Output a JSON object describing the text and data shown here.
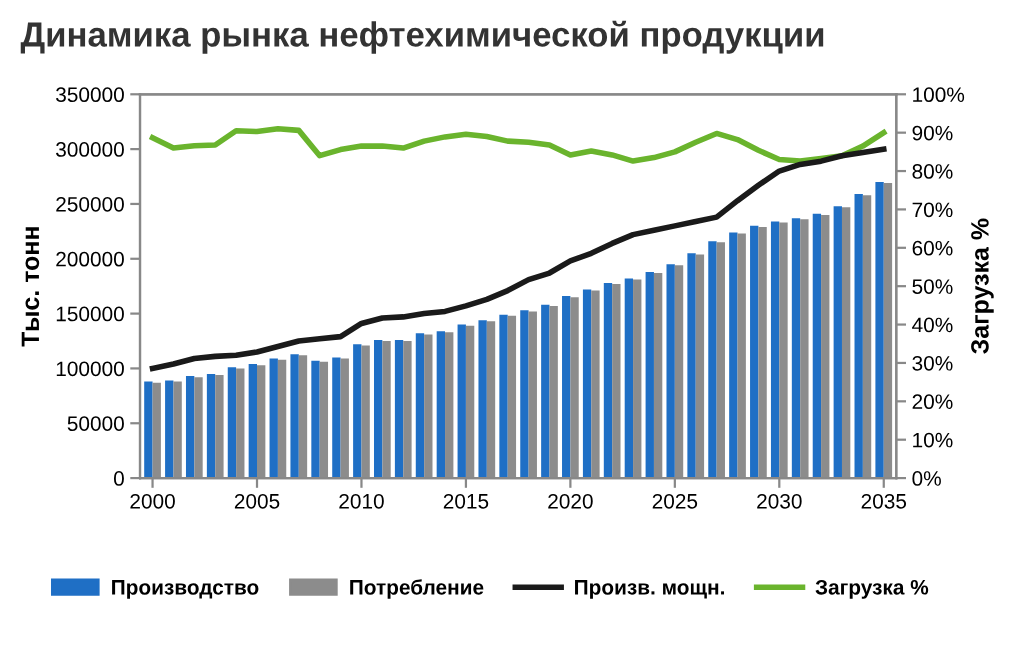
{
  "chart_data": {
    "type": "bar",
    "title": "Динамика рынка нефтехимической продукции",
    "ylabel": "Тыс. тонн",
    "y2label": "Загрузка %",
    "categories": [
      "2000",
      null,
      null,
      null,
      null,
      "2005",
      null,
      null,
      null,
      null,
      "2010",
      null,
      null,
      null,
      null,
      "2015",
      null,
      null,
      null,
      null,
      "2020",
      null,
      null,
      null,
      null,
      "2025",
      null,
      null,
      null,
      null,
      "2030",
      null,
      null,
      null,
      null,
      "2035"
    ],
    "series": [
      {
        "name": "Производство",
        "color": "#1f6fc5",
        "values": [
          88000,
          89000,
          93000,
          95000,
          101000,
          104000,
          109000,
          113000,
          107000,
          110000,
          122000,
          126000,
          126000,
          132000,
          134000,
          140000,
          144000,
          149000,
          153000,
          158000,
          166000,
          172000,
          178000,
          182000,
          188000,
          195000,
          205000,
          216000,
          224000,
          230000,
          234000,
          237000,
          241000,
          248000,
          259000,
          270000
        ]
      },
      {
        "name": "Потребление",
        "color": "#8c8c8c",
        "values": [
          87000,
          88000,
          92000,
          94000,
          100000,
          103000,
          108000,
          112000,
          106000,
          109000,
          121000,
          125000,
          125000,
          131000,
          133000,
          139000,
          143000,
          148000,
          152000,
          157000,
          165000,
          171000,
          177000,
          181000,
          187000,
          194000,
          204000,
          215000,
          223000,
          229000,
          233000,
          236000,
          240000,
          247000,
          258000,
          269000
        ]
      },
      {
        "name": "Произв. мощн.",
        "type": "line",
        "color": "#1a1a1a",
        "values": [
          100000,
          104000,
          109000,
          111000,
          112000,
          115000,
          120000,
          125000,
          127000,
          129000,
          141000,
          146000,
          147000,
          150000,
          152000,
          157000,
          163000,
          171000,
          181000,
          187000,
          198000,
          205000,
          214000,
          222000,
          226000,
          230000,
          234000,
          238000,
          253000,
          267000,
          280000,
          286000,
          289000,
          294000,
          297000,
          300000
        ]
      },
      {
        "name": "Загрузка %",
        "type": "line",
        "axis": "y2",
        "color": "#6ab42d",
        "values": [
          88.7,
          86,
          86.6,
          86.8,
          90.5,
          90.3,
          91,
          90.6,
          84,
          85.6,
          86.5,
          86.5,
          86,
          87.8,
          88.9,
          89.6,
          89,
          87.8,
          87.5,
          86.8,
          84.2,
          85.2,
          84.2,
          82.6,
          83.5,
          85,
          87.5,
          89.8,
          88.2,
          85.4,
          83,
          82.6,
          83.3,
          84,
          86.5,
          90
        ]
      }
    ],
    "ylim": [
      0,
      350000
    ],
    "yticks": [
      0,
      50000,
      100000,
      150000,
      200000,
      250000,
      300000,
      350000
    ],
    "y2lim": [
      0,
      100
    ],
    "y2ticks": [
      {
        "value": 0,
        "label": "0%"
      },
      {
        "value": 10,
        "label": "10%"
      },
      {
        "value": 20,
        "label": "20%"
      },
      {
        "value": 30,
        "label": "30%"
      },
      {
        "value": 40,
        "label": "40%"
      },
      {
        "value": 50,
        "label": "50%"
      },
      {
        "value": 60,
        "label": "60%"
      },
      {
        "value": 70,
        "label": "70%"
      },
      {
        "value": 80,
        "label": "80%"
      },
      {
        "value": 90,
        "label": "90%"
      },
      {
        "value": 100,
        "label": "100%"
      }
    ],
    "grid": false,
    "legend": "bottom",
    "marker": "none",
    "line_style": "solid"
  }
}
